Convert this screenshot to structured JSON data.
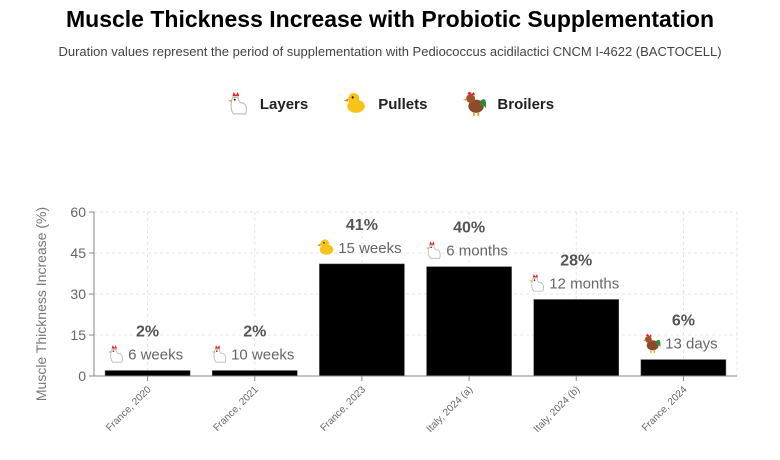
{
  "chart_data": {
    "type": "bar",
    "title": "Muscle Thickness Increase with Probiotic Supplementation",
    "subtitle": "Duration values represent the period of supplementation with Pediococcus acidilactici CNCM I-4622 (BACTOCELL)",
    "ylabel": "Muscle Thickness Increase (%)",
    "xlabel": "",
    "ylim": [
      0,
      60
    ],
    "yticks": [
      "0",
      "15",
      "30",
      "45",
      "60"
    ],
    "grid": true,
    "legend_position": "top",
    "legend": [
      {
        "label": "Layers",
        "icon": "hen-icon"
      },
      {
        "label": "Pullets",
        "icon": "chick-icon"
      },
      {
        "label": "Broilers",
        "icon": "rooster-icon"
      }
    ],
    "bar_color": "#000000",
    "categories": [
      "France, 2020",
      "France, 2021",
      "France, 2023",
      "Italy, 2024 (a)",
      "Italy, 2024 (b)",
      "France, 2024"
    ],
    "values": [
      2,
      2,
      41,
      40,
      28,
      6
    ],
    "value_labels": [
      "2%",
      "2%",
      "41%",
      "40%",
      "28%",
      "6%"
    ],
    "durations": [
      "6 weeks",
      "10 weeks",
      "15 weeks",
      "6 months",
      "12 months",
      "13 days"
    ],
    "bird_types": [
      "Layers",
      "Layers",
      "Pullets",
      "Layers",
      "Layers",
      "Broilers"
    ]
  }
}
